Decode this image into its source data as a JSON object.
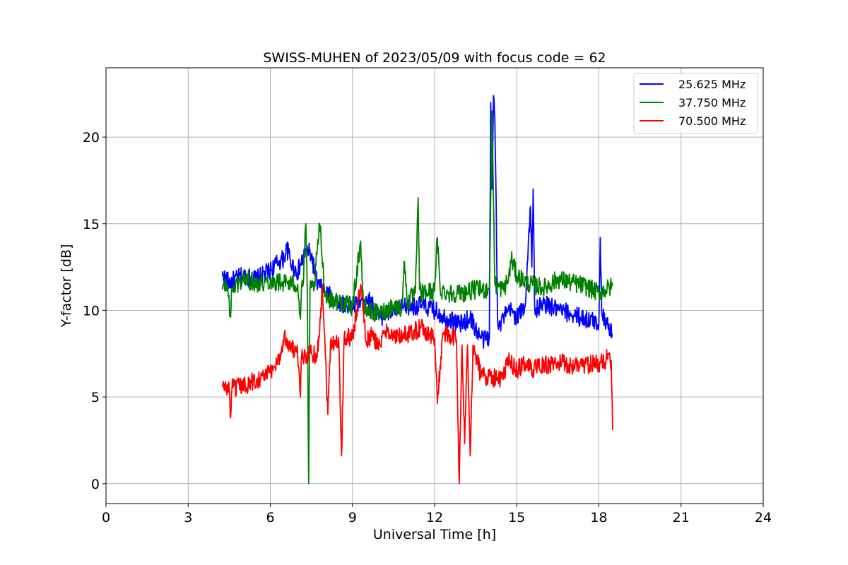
{
  "chart_data": {
    "type": "line",
    "title": "SWISS-MUHEN of 2023/05/09 with focus code = 62",
    "xlabel": "Universal Time [h]",
    "ylabel": "Y-factor [dB]",
    "xlim": [
      0,
      24
    ],
    "ylim": [
      -1.15,
      24
    ],
    "xticks": [
      0,
      3,
      6,
      9,
      12,
      15,
      18,
      21,
      24
    ],
    "yticks": [
      0,
      5,
      10,
      15,
      20
    ],
    "grid": true,
    "legend_position": "top-right",
    "series": [
      {
        "name": "25.625 MHz",
        "color": "#0000ff",
        "x": [
          4.25,
          4.5,
          5.0,
          5.5,
          6.0,
          6.3,
          6.5,
          6.6,
          6.8,
          7.0,
          7.2,
          7.3,
          7.5,
          7.7,
          8.0,
          8.5,
          9.0,
          9.5,
          10.0,
          10.5,
          11.0,
          11.5,
          12.0,
          12.5,
          13.0,
          13.3,
          13.6,
          13.8,
          14.0,
          14.05,
          14.1,
          14.15,
          14.2,
          14.25,
          14.3,
          14.4,
          14.5,
          14.8,
          15.0,
          15.3,
          15.5,
          15.55,
          15.6,
          15.65,
          15.7,
          16.0,
          16.5,
          17.0,
          17.5,
          18.0,
          18.05,
          18.1,
          18.3,
          18.5
        ],
        "y": [
          12.0,
          11.6,
          12.0,
          11.8,
          12.3,
          12.8,
          13.0,
          13.6,
          12.6,
          12.2,
          13.0,
          13.5,
          13.2,
          11.6,
          11.0,
          10.5,
          10.2,
          10.8,
          9.6,
          10.0,
          10.2,
          10.3,
          10.0,
          9.5,
          9.2,
          9.6,
          8.6,
          8.3,
          8.5,
          22.0,
          17.0,
          22.4,
          21.0,
          16.0,
          9.5,
          9.2,
          9.6,
          10.0,
          9.6,
          10.2,
          16.0,
          12.5,
          17.0,
          10.5,
          10.0,
          10.4,
          10.0,
          9.8,
          9.5,
          9.3,
          14.2,
          10.0,
          9.2,
          8.6
        ]
      },
      {
        "name": "37.750 MHz",
        "color": "#008000",
        "x": [
          4.25,
          4.4,
          4.5,
          4.55,
          4.6,
          5.0,
          5.5,
          6.0,
          6.5,
          7.0,
          7.1,
          7.15,
          7.2,
          7.3,
          7.35,
          7.4,
          7.45,
          7.5,
          7.55,
          7.6,
          7.8,
          8.0,
          8.1,
          8.5,
          9.0,
          9.3,
          9.4,
          9.5,
          10.0,
          10.5,
          10.8,
          10.9,
          11.0,
          11.3,
          11.4,
          11.45,
          11.5,
          12.0,
          12.1,
          12.2,
          12.5,
          13.0,
          13.5,
          14.0,
          14.1,
          14.2,
          14.5,
          14.7,
          14.8,
          15.0,
          15.5,
          16.0,
          16.5,
          17.0,
          17.5,
          18.0,
          18.5
        ],
        "y": [
          11.2,
          11.5,
          10.5,
          9.6,
          11.2,
          11.8,
          11.6,
          11.7,
          11.6,
          11.5,
          9.5,
          11.6,
          11.5,
          15.0,
          11.3,
          0.0,
          11.2,
          11.3,
          11.4,
          11.2,
          15.0,
          11.0,
          10.7,
          10.5,
          10.2,
          14.0,
          10.2,
          10.0,
          9.8,
          10.3,
          10.1,
          12.8,
          10.5,
          11.0,
          16.5,
          11.2,
          11.0,
          11.1,
          14.2,
          11.2,
          11.0,
          11.0,
          11.2,
          11.2,
          21.5,
          11.5,
          11.2,
          11.8,
          13.0,
          12.0,
          11.5,
          11.3,
          11.8,
          11.6,
          11.4,
          11.0,
          11.4
        ]
      },
      {
        "name": "70.500 MHz",
        "color": "#ff0000",
        "x": [
          4.25,
          4.5,
          4.55,
          4.6,
          5.0,
          5.5,
          6.0,
          6.4,
          6.5,
          7.0,
          7.1,
          7.15,
          7.2,
          7.5,
          7.7,
          7.8,
          7.9,
          8.0,
          8.1,
          8.2,
          8.5,
          8.6,
          8.7,
          9.0,
          9.3,
          9.5,
          9.7,
          10.0,
          10.3,
          10.5,
          11.0,
          11.5,
          12.0,
          12.1,
          12.3,
          12.5,
          12.8,
          12.9,
          13.0,
          13.1,
          13.2,
          13.3,
          13.4,
          13.5,
          13.7,
          14.0,
          14.5,
          14.7,
          15.0,
          15.3,
          15.5,
          16.0,
          16.5,
          17.0,
          17.5,
          18.0,
          18.3,
          18.45,
          18.5
        ],
        "y": [
          5.6,
          5.5,
          3.8,
          5.5,
          5.6,
          6.0,
          6.4,
          7.5,
          8.5,
          7.4,
          5.0,
          7.5,
          7.3,
          7.6,
          7.4,
          8.8,
          11.5,
          8.0,
          4.0,
          8.2,
          8.2,
          1.6,
          8.5,
          8.4,
          11.5,
          8.2,
          8.5,
          8.0,
          9.0,
          8.4,
          8.6,
          9.0,
          8.4,
          4.6,
          8.7,
          8.5,
          8.3,
          0.0,
          8.0,
          2.3,
          8.0,
          1.6,
          8.0,
          7.5,
          6.2,
          6.2,
          6.0,
          7.2,
          6.5,
          7.0,
          6.6,
          6.8,
          7.0,
          6.8,
          6.9,
          6.9,
          7.2,
          7.1,
          3.1
        ]
      }
    ]
  }
}
